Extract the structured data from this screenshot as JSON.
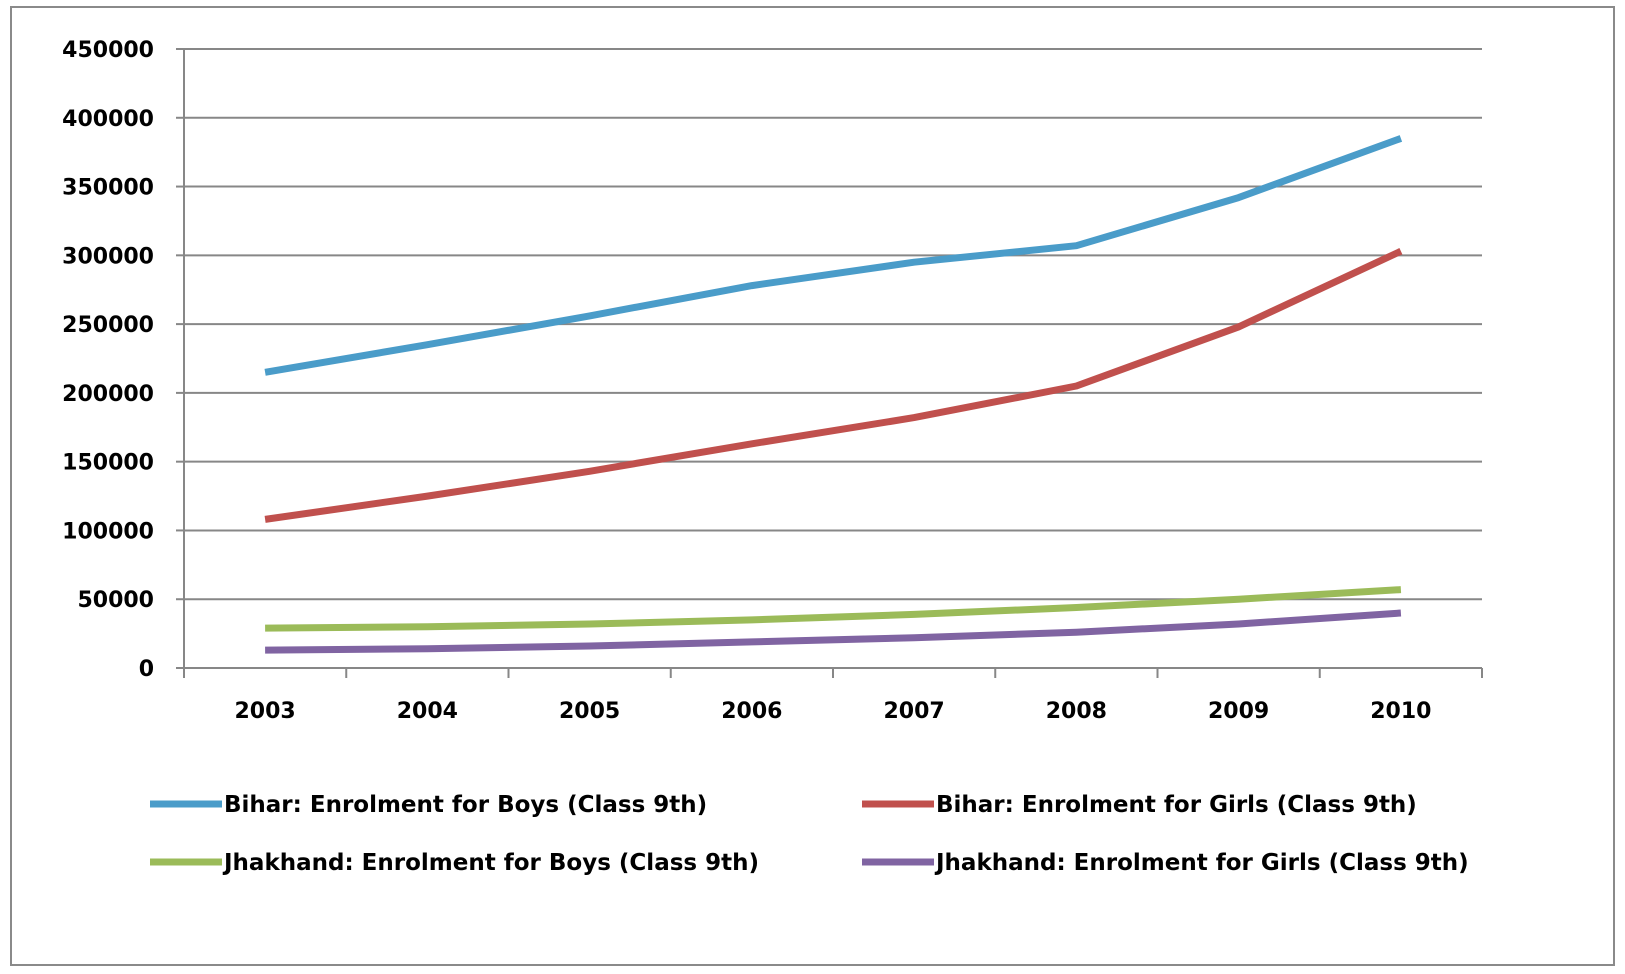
{
  "chart_data": {
    "type": "line",
    "title": "",
    "xlabel": "",
    "ylabel": "",
    "categories": [
      "2003",
      "2004",
      "2005",
      "2006",
      "2007",
      "2008",
      "2009",
      "2010"
    ],
    "ylim": [
      0,
      450000
    ],
    "y_ticks": [
      0,
      50000,
      100000,
      150000,
      200000,
      250000,
      300000,
      350000,
      400000,
      450000
    ],
    "y_tick_labels": [
      "0",
      "50000",
      "100000",
      "150000",
      "200000",
      "250000",
      "300000",
      "350000",
      "400000",
      "450000"
    ],
    "grid": true,
    "legend_position": "bottom",
    "series": [
      {
        "name": "Bihar: Enrolment for Boys (Class 9th)",
        "color": "#4a9cc9",
        "values": [
          215000,
          235000,
          256000,
          278000,
          295000,
          307000,
          342000,
          385000
        ]
      },
      {
        "name": "Bihar: Enrolment for Girls (Class 9th)",
        "color": "#c0504d",
        "values": [
          108000,
          125000,
          143000,
          163000,
          182000,
          205000,
          248000,
          303000
        ]
      },
      {
        "name": "Jhakhand: Enrolment for Boys (Class 9th)",
        "color": "#9bbb59",
        "values": [
          29000,
          30000,
          32000,
          35000,
          39000,
          44000,
          50000,
          57000
        ]
      },
      {
        "name": "Jhakhand: Enrolment for Girls (Class 9th)",
        "color": "#8064a2",
        "values": [
          13000,
          14000,
          16000,
          19000,
          22000,
          26000,
          32000,
          40000
        ]
      }
    ]
  }
}
